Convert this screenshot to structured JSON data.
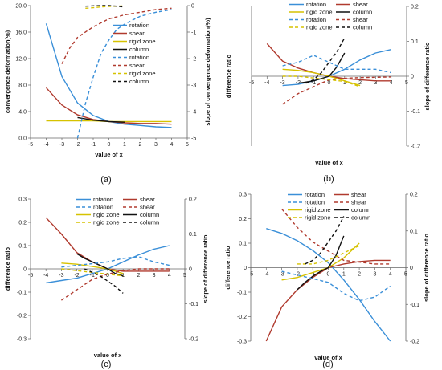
{
  "chart_data": [
    {
      "type": "line",
      "caption": "(a)",
      "xlabel": "value of x",
      "ylabel": "convergence deformation(%)",
      "y2label": "slope of convergence deformation(%)",
      "xlim": [
        -5,
        5
      ],
      "ylim": [
        0,
        20
      ],
      "y2lim": [
        -5,
        0
      ],
      "xticks": [
        "-5",
        "-4",
        "-3",
        "-2",
        "-1",
        "0",
        "1",
        "2",
        "3",
        "4",
        "5"
      ],
      "yticks": [
        "0.0",
        "4.0",
        "8.0",
        "12.0",
        "16.0",
        "20.0"
      ],
      "y2ticks": [
        "-5",
        "-4",
        "-3",
        "-2",
        "-1",
        "0"
      ],
      "legend": [
        "rotation",
        "shear",
        "rigid zone",
        "column",
        "rotation",
        "shear",
        "rigid zone",
        "column"
      ],
      "series": [
        {
          "name": "rotation",
          "axis": "left",
          "style": "solid",
          "color": "#3a8fd8",
          "x": [
            -4,
            -3,
            -2,
            -1,
            0,
            1,
            2,
            3,
            4
          ],
          "y": [
            17.3,
            9.3,
            5.3,
            3.4,
            2.5,
            2.1,
            1.9,
            1.7,
            1.6
          ]
        },
        {
          "name": "shear",
          "axis": "left",
          "style": "solid",
          "color": "#b03a2e",
          "x": [
            -4,
            -3,
            -2,
            -1,
            0,
            1,
            2,
            3,
            4
          ],
          "y": [
            7.6,
            5.0,
            3.5,
            2.8,
            2.5,
            2.3,
            2.2,
            2.2,
            2.1
          ]
        },
        {
          "name": "rigid zone",
          "axis": "left",
          "style": "solid",
          "color": "#d6c200",
          "x": [
            -4,
            -3,
            -2,
            -1,
            0,
            1,
            2,
            3,
            4
          ],
          "y": [
            2.6,
            2.6,
            2.6,
            2.6,
            2.5,
            2.5,
            2.5,
            2.5,
            2.5
          ]
        },
        {
          "name": "column",
          "axis": "left",
          "style": "solid",
          "color": "#111111",
          "x": [
            -2,
            -1.5,
            -1,
            -0.5,
            0,
            0.5,
            1
          ],
          "y": [
            3.1,
            2.9,
            2.7,
            2.6,
            2.5,
            2.45,
            2.4
          ]
        },
        {
          "name": "rotation",
          "axis": "right",
          "style": "dashed",
          "color": "#3a8fd8",
          "x": [
            -2,
            -1.5,
            -1,
            -0.5,
            0,
            0.5,
            1,
            2,
            3,
            4
          ],
          "y": [
            -5,
            -3.7,
            -2.7,
            -1.8,
            -1.3,
            -0.9,
            -0.7,
            -0.4,
            -0.25,
            -0.15
          ]
        },
        {
          "name": "shear",
          "axis": "right",
          "style": "dashed",
          "color": "#b03a2e",
          "x": [
            -3,
            -2.5,
            -2,
            -1,
            0,
            1,
            2,
            3,
            4
          ],
          "y": [
            -2.2,
            -1.6,
            -1.2,
            -0.8,
            -0.5,
            -0.35,
            -0.25,
            -0.15,
            -0.1
          ]
        },
        {
          "name": "rigid zone",
          "axis": "right",
          "style": "dashed",
          "color": "#d6c200",
          "x": [
            -1.5,
            -1,
            -0.5,
            0,
            0.5,
            1
          ],
          "y": [
            -0.1,
            -0.08,
            -0.05,
            -0.03,
            -0.02,
            -0.01
          ]
        },
        {
          "name": "column",
          "axis": "right",
          "style": "dashed",
          "color": "#111111",
          "x": [
            -1.5,
            -1,
            -0.5,
            0,
            0.5,
            1
          ],
          "y": [
            -0.02,
            -0.01,
            0,
            0,
            -0.02,
            -0.05
          ]
        }
      ]
    },
    {
      "type": "line",
      "caption": "(b)",
      "xlabel": "value of x",
      "ylabel": "difference ratio",
      "y2label": "slope of difference ratio",
      "xlim": [
        -5,
        5
      ],
      "ylim": [
        -0.3,
        0.3
      ],
      "y2lim": [
        -0.2,
        0.2
      ],
      "xticks": [
        "-5",
        "-4",
        "-3",
        "-2",
        "-1",
        "0",
        "1",
        "2",
        "3",
        "4",
        "5"
      ],
      "yticks": [],
      "y2ticks": [
        "-0.2",
        "-0.1",
        "0",
        "0.1",
        "0.2"
      ],
      "legend": [
        "rotation",
        "shear",
        "rigid zone",
        "column",
        "rotation",
        "shear",
        "rigid zone",
        "column"
      ],
      "series": [
        {
          "name": "rotation",
          "axis": "left",
          "style": "solid",
          "color": "#3a8fd8",
          "x": [
            -3,
            -2,
            -1,
            0,
            1,
            2,
            3,
            4
          ],
          "y": [
            -0.04,
            -0.035,
            -0.02,
            0,
            0.03,
            0.07,
            0.1,
            0.115
          ]
        },
        {
          "name": "shear",
          "axis": "left",
          "style": "solid",
          "color": "#b03a2e",
          "x": [
            -4,
            -3,
            -2,
            -1,
            0,
            1,
            2,
            3,
            4
          ],
          "y": [
            0.14,
            0.065,
            0.035,
            0.015,
            0,
            -0.01,
            -0.015,
            -0.02,
            -0.02
          ]
        },
        {
          "name": "rigid zone",
          "axis": "left",
          "style": "solid",
          "color": "#d6c200",
          "x": [
            -3,
            -2,
            -1,
            0,
            1,
            2
          ],
          "y": [
            0.03,
            0.025,
            0.015,
            0,
            -0.02,
            -0.04
          ]
        },
        {
          "name": "column",
          "axis": "left",
          "style": "solid",
          "color": "#111111",
          "x": [
            -2,
            -1.5,
            -1,
            -0.5,
            0,
            0.5,
            1
          ],
          "y": [
            -0.03,
            -0.025,
            -0.02,
            -0.01,
            0,
            0.04,
            0.1
          ]
        },
        {
          "name": "rotation",
          "axis": "right",
          "style": "dashed",
          "color": "#3a8fd8",
          "x": [
            -3,
            -2,
            -1,
            0,
            1,
            2,
            3,
            4
          ],
          "y": [
            0.03,
            0.04,
            0.06,
            0.04,
            0.02,
            0.02,
            0.02,
            0.01
          ]
        },
        {
          "name": "shear",
          "axis": "right",
          "style": "dashed",
          "color": "#b03a2e",
          "x": [
            -3,
            -2,
            -1,
            0,
            1,
            2,
            3,
            4
          ],
          "y": [
            -0.08,
            -0.05,
            -0.03,
            -0.01,
            -0.006,
            -0.004,
            -0.003,
            -0.002
          ]
        },
        {
          "name": "rigid zone",
          "axis": "right",
          "style": "dashed",
          "color": "#d6c200",
          "x": [
            -3,
            -2,
            -1,
            0,
            1,
            2
          ],
          "y": [
            0.0,
            0.0,
            -0.005,
            -0.01,
            -0.015,
            -0.03
          ]
        },
        {
          "name": "column",
          "axis": "right",
          "style": "dashed",
          "color": "#111111",
          "x": [
            -1.5,
            -1,
            -0.5,
            0,
            0.5,
            1
          ],
          "y": [
            -0.02,
            -0.01,
            0.01,
            0.04,
            0.07,
            0.11
          ]
        }
      ]
    },
    {
      "type": "line",
      "caption": "(c)",
      "xlabel": "value of x",
      "ylabel": "difference ratio",
      "y2label": "slope of difference ratio",
      "xlim": [
        -5,
        5
      ],
      "ylim": [
        -0.3,
        0.3
      ],
      "y2lim": [
        -0.2,
        0.2
      ],
      "xticks": [
        "-5",
        "-4",
        "-3",
        "-2",
        "-1",
        "0",
        "1",
        "2",
        "3",
        "4",
        "5"
      ],
      "yticks": [
        "-0.3",
        "-0.2",
        "-0.1",
        "0",
        "0.1",
        "0.2",
        "0.3"
      ],
      "y2ticks": [
        "-0.2",
        "-0.1",
        "0",
        "0.1",
        "0.2"
      ],
      "legend": [
        "rotation",
        "shear",
        "rotation",
        "shear",
        "rigid zone",
        "column",
        "rigid zone",
        "column"
      ],
      "series": [
        {
          "name": "rotation",
          "axis": "left",
          "style": "solid",
          "color": "#3a8fd8",
          "x": [
            -4,
            -3,
            -2,
            -1,
            0,
            1,
            2,
            3,
            4
          ],
          "y": [
            -0.06,
            -0.05,
            -0.04,
            -0.02,
            0,
            0.03,
            0.06,
            0.085,
            0.1
          ]
        },
        {
          "name": "shear",
          "axis": "left",
          "style": "solid",
          "color": "#b03a2e",
          "x": [
            -4,
            -3,
            -2,
            -1,
            0,
            1,
            2,
            3,
            4
          ],
          "y": [
            0.22,
            0.15,
            0.07,
            0.03,
            0,
            -0.01,
            -0.01,
            -0.01,
            -0.01
          ]
        },
        {
          "name": "rigid zone",
          "axis": "left",
          "style": "solid",
          "color": "#d6c200",
          "x": [
            -3,
            -2,
            -1,
            0,
            1
          ],
          "y": [
            0.025,
            0.02,
            0.01,
            0,
            -0.02
          ]
        },
        {
          "name": "column",
          "axis": "left",
          "style": "solid",
          "color": "#111111",
          "x": [
            -2,
            -1.5,
            -1,
            -0.5,
            0,
            0.5,
            1
          ],
          "y": [
            0.065,
            0.045,
            0.03,
            0.015,
            0,
            -0.02,
            -0.03
          ]
        },
        {
          "name": "rotation",
          "axis": "right",
          "style": "dashed",
          "color": "#3a8fd8",
          "x": [
            -3,
            -2,
            -1,
            0,
            1,
            2,
            3,
            4
          ],
          "y": [
            0.005,
            0.01,
            0.015,
            0.02,
            0.03,
            0.035,
            0.02,
            0.01
          ]
        },
        {
          "name": "shear",
          "axis": "right",
          "style": "dashed",
          "color": "#b03a2e",
          "x": [
            -3,
            -2,
            -1,
            0,
            1,
            2,
            3,
            4
          ],
          "y": [
            -0.09,
            -0.06,
            -0.03,
            -0.015,
            -0.005,
            0,
            0,
            0
          ]
        },
        {
          "name": "rigid zone",
          "axis": "right",
          "style": "dashed",
          "color": "#d6c200",
          "x": [
            -3,
            -2,
            -1,
            0,
            1
          ],
          "y": [
            0.0,
            -0.005,
            -0.01,
            -0.015,
            -0.02
          ]
        },
        {
          "name": "column",
          "axis": "right",
          "style": "dashed",
          "color": "#111111",
          "x": [
            -1.5,
            -1,
            -0.5,
            0,
            0.5,
            1
          ],
          "y": [
            0.0,
            -0.01,
            -0.02,
            -0.035,
            -0.05,
            -0.07
          ]
        }
      ]
    },
    {
      "type": "line",
      "caption": "(d)",
      "xlabel": "value of x",
      "ylabel": "difference ratio",
      "y2label": "slope of difference ratio",
      "xlim": [
        -5,
        5
      ],
      "ylim": [
        -0.3,
        0.3
      ],
      "y2lim": [
        -0.2,
        0.2
      ],
      "xticks": [
        "-5",
        "-4",
        "-3",
        "-2",
        "-1",
        "0",
        "1",
        "2",
        "3",
        "4",
        "5"
      ],
      "yticks": [
        "-0.3",
        "-0.2",
        "-0.1",
        "0",
        "0.1",
        "0.2",
        "0.3"
      ],
      "y2ticks": [
        "-0.2",
        "-0.1",
        "0",
        "0.1",
        "0.2"
      ],
      "legend": [
        "rotation",
        "shear",
        "rotation",
        "shear",
        "rigid zone",
        "column",
        "rigid zone",
        "column"
      ],
      "series": [
        {
          "name": "rotation",
          "axis": "left",
          "style": "solid",
          "color": "#3a8fd8",
          "x": [
            -4,
            -3,
            -2,
            -1,
            0,
            1,
            2,
            3,
            4
          ],
          "y": [
            0.16,
            0.14,
            0.11,
            0.07,
            0.02,
            -0.05,
            -0.13,
            -0.22,
            -0.3
          ]
        },
        {
          "name": "shear",
          "axis": "left",
          "style": "solid",
          "color": "#b03a2e",
          "x": [
            -4,
            -3,
            -2,
            -1,
            0,
            1,
            2,
            3,
            4
          ],
          "y": [
            -0.3,
            -0.16,
            -0.09,
            -0.04,
            0,
            0.015,
            0.025,
            0.03,
            0.03
          ]
        },
        {
          "name": "rigid zone",
          "axis": "left",
          "style": "solid",
          "color": "#d6c200",
          "x": [
            -3,
            -2,
            -1,
            0,
            1,
            2
          ],
          "y": [
            -0.05,
            -0.04,
            -0.02,
            0,
            0.04,
            0.1
          ]
        },
        {
          "name": "column",
          "axis": "left",
          "style": "solid",
          "color": "#111111",
          "x": [
            -2,
            -1.5,
            -1,
            -0.5,
            0,
            0.5,
            1
          ],
          "y": [
            -0.09,
            -0.06,
            -0.035,
            -0.015,
            0,
            0.05,
            0.13
          ]
        },
        {
          "name": "rotation",
          "axis": "right",
          "style": "dashed",
          "color": "#3a8fd8",
          "x": [
            -3,
            -2,
            -1,
            0,
            1,
            2,
            3,
            4
          ],
          "y": [
            -0.01,
            -0.02,
            -0.03,
            -0.04,
            -0.07,
            -0.09,
            -0.08,
            -0.05
          ]
        },
        {
          "name": "shear",
          "axis": "right",
          "style": "dashed",
          "color": "#b03a2e",
          "x": [
            -3,
            -2,
            -1,
            0,
            1,
            2,
            3,
            4
          ],
          "y": [
            0.16,
            0.11,
            0.07,
            0.045,
            0.02,
            0.015,
            0.01,
            0.01
          ]
        },
        {
          "name": "rigid zone",
          "axis": "right",
          "style": "dashed",
          "color": "#d6c200",
          "x": [
            -2,
            -1,
            0,
            1,
            2
          ],
          "y": [
            0.01,
            0.01,
            0.02,
            0.04,
            0.06
          ]
        },
        {
          "name": "column",
          "axis": "right",
          "style": "dashed",
          "color": "#111111",
          "x": [
            -1.5,
            -1,
            -0.5,
            0,
            0.5,
            1
          ],
          "y": [
            0.01,
            0.02,
            0.04,
            0.07,
            0.1,
            0.14
          ]
        }
      ]
    }
  ]
}
